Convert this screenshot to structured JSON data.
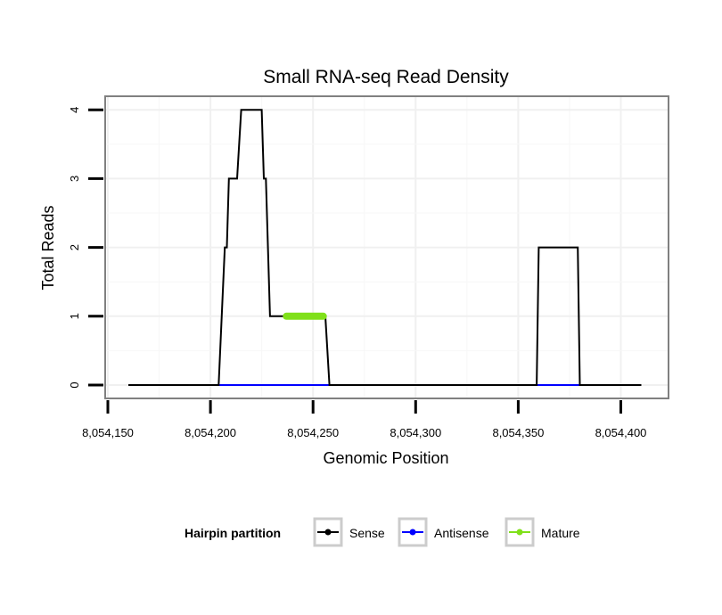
{
  "chart_data": {
    "type": "line",
    "title": "Small RNA-seq Read Density",
    "xlabel": "Genomic Position",
    "ylabel": "Total Reads",
    "xlim": [
      8054160,
      8054410
    ],
    "ylim": [
      0,
      4
    ],
    "x_ticks": [
      8054150,
      8054200,
      8054250,
      8054300,
      8054350,
      8054400
    ],
    "x_tick_labels": [
      "8,054,150",
      "8,054,200",
      "8,054,250",
      "8,054,300",
      "8,054,350",
      "8,054,400"
    ],
    "y_ticks": [
      0,
      1,
      2,
      3,
      4
    ],
    "y_tick_labels": [
      "0",
      "1",
      "2",
      "3",
      "4"
    ],
    "grid": true,
    "legend": {
      "title": "Hairpin partition",
      "position": "bottom",
      "entries": [
        "Sense",
        "Antisense",
        "Mature"
      ]
    },
    "series": [
      {
        "name": "Sense",
        "color": "#000000",
        "x": [
          8054160,
          8054204,
          8054207,
          8054208,
          8054209,
          8054213,
          8054215,
          8054225,
          8054226,
          8054227,
          8054229,
          8054237,
          8054256,
          8054258,
          8054359,
          8054360,
          8054379,
          8054380,
          8054410
        ],
        "y": [
          0,
          0,
          2,
          2,
          3,
          3,
          4,
          4,
          3,
          3,
          1,
          1,
          1,
          0,
          0,
          2,
          2,
          0,
          0
        ]
      },
      {
        "name": "Antisense",
        "color": "#0000ff",
        "x": [
          8054204,
          8054258,
          8054359,
          8054380
        ],
        "y": [
          0,
          0,
          0,
          0
        ],
        "segments": [
          [
            0,
            1
          ],
          [
            2,
            3
          ]
        ]
      },
      {
        "name": "Mature",
        "color": "#80e01a",
        "x": [
          8054237,
          8054255
        ],
        "y": [
          1,
          1
        ]
      }
    ]
  }
}
